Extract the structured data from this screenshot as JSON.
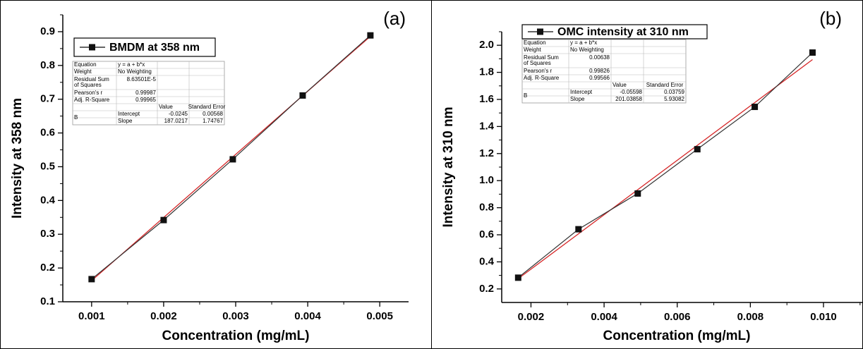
{
  "chart_data": [
    {
      "type": "scatter",
      "panel_label": "(a)",
      "xlabel": "Concentration (mg/mL)",
      "ylabel": "Intensity at 358 nm",
      "xlim": [
        0.0006,
        0.0054
      ],
      "ylim": [
        0.1,
        0.95
      ],
      "x_ticks": [
        0.001,
        0.002,
        0.003,
        0.004,
        0.005
      ],
      "x_tick_labels": [
        "0.001",
        "0.002",
        "0.003",
        "0.004",
        "0.005"
      ],
      "y_ticks": [
        0.1,
        0.2,
        0.3,
        0.4,
        0.5,
        0.6,
        0.7,
        0.8,
        0.9
      ],
      "y_tick_labels": [
        "0.1",
        "0.2",
        "0.3",
        "0.4",
        "0.5",
        "0.6",
        "0.7",
        "0.8",
        "0.9"
      ],
      "series": [
        {
          "name": "BMDM at 358 nm",
          "x": [
            0.001,
            0.002,
            0.00296,
            0.00393,
            0.00487
          ],
          "y": [
            0.167,
            0.342,
            0.522,
            0.711,
            0.889
          ]
        }
      ],
      "fit": {
        "intercept": -0.0245,
        "slope": 187.0217,
        "color": "#d62728"
      },
      "legend_position": "top-left",
      "fit_table": {
        "equation_label": "Equation",
        "equation": "y = a + b*x",
        "weight_label": "Weight",
        "weight": "No Weighting",
        "rss_label_1": "Residual Sum",
        "rss_label_2": "of Squares",
        "rss": "8.63501E-5",
        "pearson_label": "Pearson's r",
        "pearson": "0.99987",
        "adjr2_label": "Adj. R-Square",
        "adjr2": "0.99965",
        "value_header": "Value",
        "se_header": "Standard Error",
        "param_group": "B",
        "intercept_label": "Intercept",
        "intercept_value": "-0.0245",
        "intercept_se": "0.00568",
        "slope_label": "Slope",
        "slope_value": "187.0217",
        "slope_se": "1.74767"
      }
    },
    {
      "type": "scatter",
      "panel_label": "(b)",
      "xlabel": "Concentration (mg/mL)",
      "ylabel": "Intensity at 310 nm",
      "xlim": [
        0.0012,
        0.0111
      ],
      "ylim": [
        0.1,
        2.1
      ],
      "x_ticks": [
        0.002,
        0.004,
        0.006,
        0.008,
        0.01
      ],
      "x_tick_labels": [
        "0.002",
        "0.004",
        "0.006",
        "0.008",
        "0.010"
      ],
      "y_ticks": [
        0.2,
        0.4,
        0.6,
        0.8,
        1.0,
        1.2,
        1.4,
        1.6,
        1.8,
        2.0
      ],
      "y_tick_labels": [
        "0.2",
        "0.4",
        "0.6",
        "0.8",
        "1.0",
        "1.2",
        "1.4",
        "1.6",
        "1.8",
        "2.0"
      ],
      "series": [
        {
          "name": "OMC intensity at 310 nm",
          "x": [
            0.00165,
            0.0033,
            0.00492,
            0.00655,
            0.00812,
            0.0097
          ],
          "y": [
            0.283,
            0.641,
            0.905,
            1.232,
            1.545,
            1.946
          ]
        }
      ],
      "fit": {
        "intercept": -0.05598,
        "slope": 201.03858,
        "color": "#d62728"
      },
      "legend_position": "top-left",
      "fit_table": {
        "equation_label": "Equation",
        "equation": "y = a + b*x",
        "weight_label": "Weight",
        "weight": "No Weighting",
        "rss_label_1": "Residual Sum",
        "rss_label_2": "of Squares",
        "rss": "0.00638",
        "pearson_label": "Pearson's r",
        "pearson": "0.99826",
        "adjr2_label": "Adj. R-Square",
        "adjr2": "0.99566",
        "value_header": "Value",
        "se_header": "Standard Error",
        "param_group": "B",
        "intercept_label": "Intercept",
        "intercept_value": "-0.05598",
        "intercept_se": "0.03759",
        "slope_label": "Slope",
        "slope_value": "201.03858",
        "slope_se": "5.93082"
      }
    }
  ]
}
